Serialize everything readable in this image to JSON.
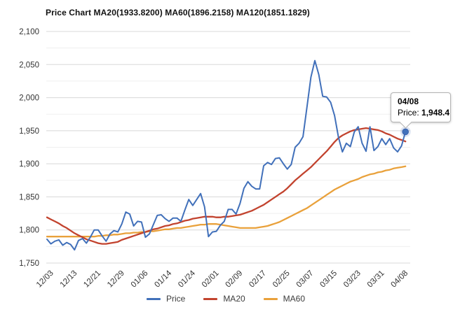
{
  "tooltip": {
    "date": "04/08",
    "price_label": "Price:",
    "price_value": "1,948.4"
  },
  "legend": {
    "items": [
      {
        "label": "Price",
        "color": "#4170BA"
      },
      {
        "label": "MA20",
        "color": "#C2432E"
      },
      {
        "label": "MA60",
        "color": "#E9A13B"
      }
    ]
  },
  "chart_data": {
    "type": "line",
    "title": "Price Chart MA20(1933.8200) MA60(1896.2158) MA120(1851.1829)",
    "xlabel": "",
    "ylabel": "",
    "ylim": [
      1750,
      2100
    ],
    "grid": true,
    "legend_position": "bottom",
    "y_tick_values": [
      2100,
      2050,
      2000,
      1950,
      1900,
      1850,
      1800,
      1750
    ],
    "y_tick_labels": [
      "2,100",
      "2,050",
      "2,000",
      "1,950",
      "1,900",
      "1,850",
      "1,800",
      "1,750"
    ],
    "y_minor_tick_values": [
      2075,
      2025,
      1975,
      1925,
      1875,
      1825,
      1775
    ],
    "x_tick_labels": [
      "12/03",
      "12/13",
      "12/21",
      "12/29",
      "01/06",
      "01/14",
      "01/24",
      "02/01",
      "02/09",
      "02/17",
      "02/25",
      "03/07",
      "03/15",
      "03/23",
      "03/31",
      "04/08"
    ],
    "x_tick_indices": [
      1,
      7,
      13,
      19,
      25,
      31,
      37,
      43,
      49,
      55,
      61,
      67,
      73,
      79,
      85,
      91
    ],
    "num_points": 92,
    "series": [
      {
        "name": "Price",
        "color": "#4170BA",
        "width": 2,
        "values": [
          1786,
          1779,
          1783,
          1785,
          1777,
          1781,
          1778,
          1770,
          1784,
          1787,
          1780,
          1789,
          1800,
          1800,
          1791,
          1783,
          1794,
          1799,
          1797,
          1809,
          1827,
          1824,
          1806,
          1813,
          1812,
          1789,
          1794,
          1808,
          1822,
          1823,
          1817,
          1813,
          1818,
          1818,
          1813,
          1830,
          1846,
          1837,
          1846,
          1855,
          1835,
          1790,
          1797,
          1798,
          1807,
          1813,
          1831,
          1831,
          1824,
          1840,
          1863,
          1873,
          1866,
          1862,
          1862,
          1897,
          1902,
          1899,
          1908,
          1909,
          1900,
          1892,
          1899,
          1925,
          1931,
          1941,
          1986,
          2031,
          2056,
          2035,
          2002,
          2001,
          1993,
          1973,
          1940,
          1918,
          1931,
          1926,
          1948,
          1956,
          1931,
          1919,
          1956,
          1920,
          1926,
          1938,
          1929,
          1938,
          1924,
          1918,
          1927,
          1948.4
        ]
      },
      {
        "name": "MA20",
        "color": "#C2432E",
        "width": 2.3,
        "values": [
          1819,
          1816,
          1813,
          1810,
          1806,
          1803,
          1799,
          1795,
          1792,
          1789,
          1786,
          1784,
          1782,
          1780,
          1779,
          1779,
          1780,
          1781,
          1782,
          1785,
          1787,
          1789,
          1791,
          1793,
          1795,
          1797,
          1799,
          1801,
          1802,
          1804,
          1806,
          1807,
          1809,
          1810,
          1812,
          1814,
          1815,
          1817,
          1818,
          1819,
          1820,
          1820,
          1820,
          1819,
          1819,
          1820,
          1820,
          1821,
          1822,
          1823,
          1825,
          1827,
          1829,
          1832,
          1835,
          1838,
          1842,
          1846,
          1850,
          1854,
          1858,
          1863,
          1869,
          1875,
          1880,
          1885,
          1890,
          1895,
          1901,
          1907,
          1913,
          1919,
          1926,
          1933,
          1939,
          1943,
          1946,
          1949,
          1951,
          1952,
          1953,
          1954,
          1953,
          1952,
          1951,
          1949,
          1946,
          1944,
          1941,
          1938,
          1936,
          1933.8
        ]
      },
      {
        "name": "MA60",
        "color": "#E9A13B",
        "width": 2.3,
        "values": [
          1790,
          1790,
          1790,
          1790,
          1790,
          1790,
          1790,
          1790,
          1790,
          1790,
          1790,
          1790,
          1790,
          1791,
          1791,
          1792,
          1792,
          1793,
          1793,
          1794,
          1795,
          1795,
          1796,
          1796,
          1797,
          1797,
          1798,
          1798,
          1799,
          1800,
          1801,
          1801,
          1802,
          1803,
          1803,
          1804,
          1805,
          1806,
          1807,
          1808,
          1808,
          1809,
          1809,
          1809,
          1808,
          1807,
          1806,
          1805,
          1804,
          1803,
          1803,
          1803,
          1803,
          1803,
          1804,
          1805,
          1806,
          1808,
          1810,
          1812,
          1815,
          1818,
          1821,
          1824,
          1827,
          1830,
          1833,
          1837,
          1841,
          1845,
          1849,
          1853,
          1857,
          1861,
          1864,
          1867,
          1870,
          1873,
          1875,
          1877,
          1880,
          1882,
          1884,
          1885,
          1887,
          1888,
          1890,
          1891,
          1893,
          1894,
          1895,
          1896.2
        ]
      }
    ],
    "end_marker": {
      "series": "Price",
      "x_label": "04/08",
      "index": 91,
      "value": 1948.4
    }
  }
}
